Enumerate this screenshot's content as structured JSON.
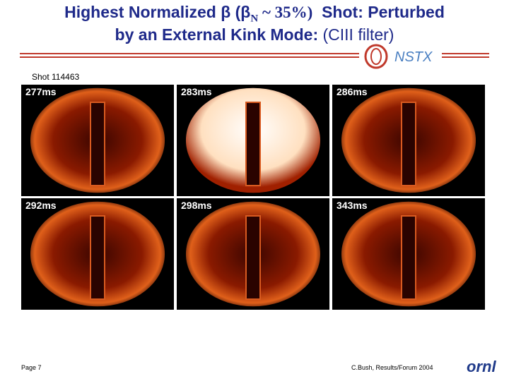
{
  "header": {
    "title_line1": [
      "Highest Normalized β (β",
      "N",
      " ~ 35%)",
      "Shot: Perturbed"
    ],
    "title_line2": [
      "by an External Kink Mode:",
      "(CIII filter)"
    ],
    "logo": "NSTX"
  },
  "shot": "Shot 114463",
  "frames": [
    {
      "label": "277ms"
    },
    {
      "label": "283ms"
    },
    {
      "label": "286ms"
    },
    {
      "label": "292ms"
    },
    {
      "label": "298ms"
    },
    {
      "label": "343ms"
    }
  ],
  "footer": {
    "page": "Page 7",
    "credit": "C.Bush, Results/Forum 2004",
    "logo": "ornl"
  }
}
